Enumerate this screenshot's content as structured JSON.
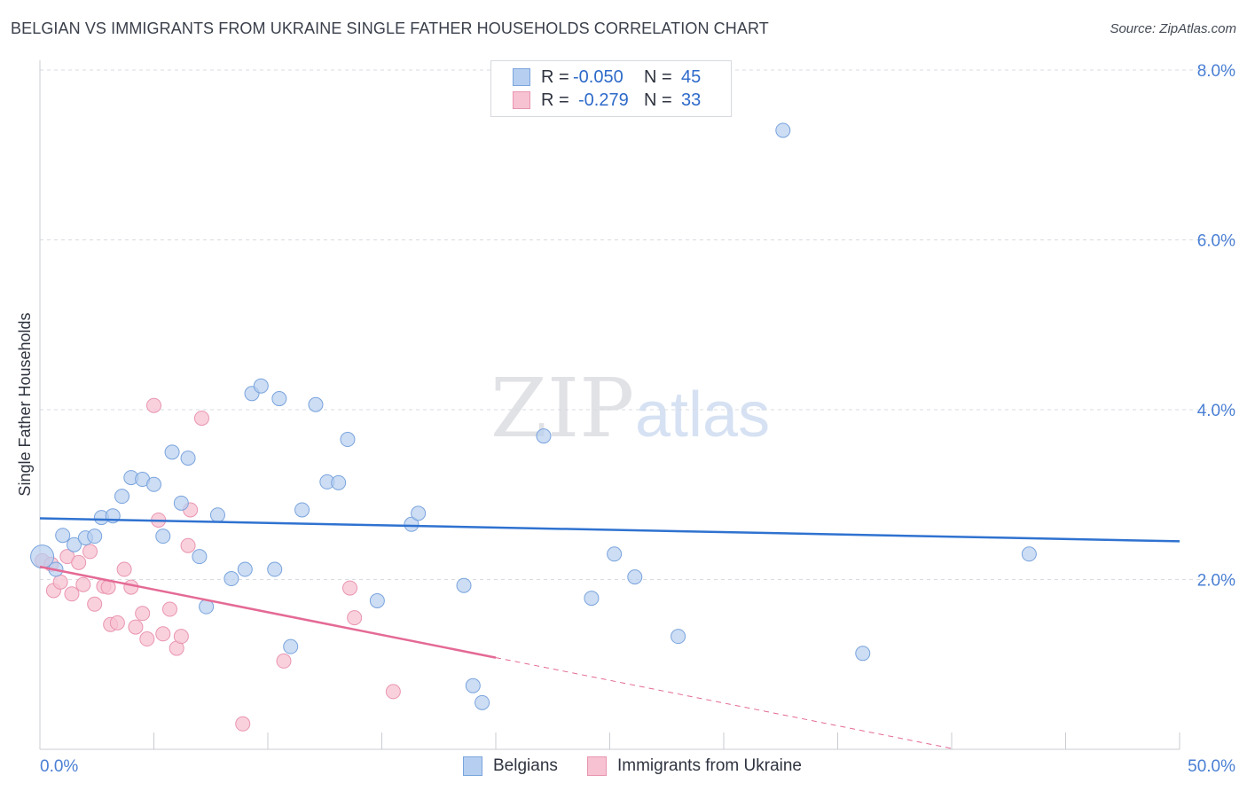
{
  "title": "BELGIAN VS IMMIGRANTS FROM UKRAINE SINGLE FATHER HOUSEHOLDS CORRELATION CHART",
  "source": "Source: ZipAtlas.com",
  "watermark": {
    "zip": "ZIP",
    "atlas": "atlas"
  },
  "legend": {
    "r_label": "R =",
    "n_label": "N =",
    "belgians": {
      "r": "-0.050",
      "n": "45"
    },
    "ukraine": {
      "r": "-0.279",
      "n": "33"
    }
  },
  "colors": {
    "belgians_fill": "#b6cff0",
    "belgians_stroke": "#7aa4dd",
    "belgians_line": "#2f72d0",
    "ukraine_fill": "#f7c2d2",
    "ukraine_stroke": "#e995b0",
    "ukraine_line": "#e46a95",
    "axis_text": "#4a7fd4",
    "grid": "#d8dbe0"
  },
  "chart_data": {
    "type": "scatter",
    "title": "BELGIAN VS IMMIGRANTS FROM UKRAINE SINGLE FATHER HOUSEHOLDS CORRELATION CHART",
    "xlabel": "",
    "ylabel": "Single Father Households",
    "xlim": [
      0,
      50
    ],
    "ylim": [
      0,
      8
    ],
    "x_tick_labels": [
      "0.0%",
      "50.0%"
    ],
    "y_ticks": [
      2,
      4,
      6,
      8
    ],
    "y_tick_labels": [
      "2.0%",
      "4.0%",
      "6.0%",
      "8.0%"
    ],
    "grid": true,
    "legend_position": "top-center",
    "series": [
      {
        "name": "Belgians",
        "points": [
          [
            0.1,
            2.27
          ],
          [
            0.7,
            2.12
          ],
          [
            1.0,
            2.52
          ],
          [
            1.5,
            2.41
          ],
          [
            2.0,
            2.49
          ],
          [
            2.4,
            2.51
          ],
          [
            2.7,
            2.73
          ],
          [
            3.2,
            2.75
          ],
          [
            3.6,
            2.98
          ],
          [
            4.0,
            3.2
          ],
          [
            4.5,
            3.18
          ],
          [
            5.0,
            3.12
          ],
          [
            5.4,
            2.51
          ],
          [
            5.8,
            3.5
          ],
          [
            6.2,
            2.9
          ],
          [
            6.5,
            3.43
          ],
          [
            7.0,
            2.27
          ],
          [
            7.3,
            1.68
          ],
          [
            7.8,
            2.76
          ],
          [
            8.4,
            2.01
          ],
          [
            9.0,
            2.12
          ],
          [
            9.3,
            4.19
          ],
          [
            9.7,
            4.28
          ],
          [
            10.3,
            2.12
          ],
          [
            10.5,
            4.13
          ],
          [
            11.0,
            1.21
          ],
          [
            11.5,
            2.82
          ],
          [
            12.1,
            4.06
          ],
          [
            12.6,
            3.15
          ],
          [
            13.1,
            3.14
          ],
          [
            13.5,
            3.65
          ],
          [
            14.8,
            1.75
          ],
          [
            16.3,
            2.65
          ],
          [
            16.6,
            2.78
          ],
          [
            18.6,
            1.93
          ],
          [
            19.0,
            0.75
          ],
          [
            19.4,
            0.55
          ],
          [
            22.1,
            3.69
          ],
          [
            24.2,
            1.78
          ],
          [
            25.2,
            2.3
          ],
          [
            26.1,
            2.03
          ],
          [
            28.0,
            1.33
          ],
          [
            32.6,
            7.29
          ],
          [
            36.1,
            1.13
          ],
          [
            43.4,
            2.3
          ]
        ],
        "trend": {
          "x": [
            0,
            50
          ],
          "y": [
            2.72,
            2.45
          ]
        }
      },
      {
        "name": "Immigrants from Ukraine",
        "points": [
          [
            0.1,
            2.22
          ],
          [
            0.5,
            2.18
          ],
          [
            0.6,
            1.87
          ],
          [
            0.9,
            1.97
          ],
          [
            1.2,
            2.27
          ],
          [
            1.4,
            1.83
          ],
          [
            1.7,
            2.2
          ],
          [
            1.9,
            1.94
          ],
          [
            2.2,
            2.33
          ],
          [
            2.4,
            1.71
          ],
          [
            2.8,
            1.92
          ],
          [
            3.0,
            1.91
          ],
          [
            3.1,
            1.47
          ],
          [
            3.4,
            1.49
          ],
          [
            3.7,
            2.12
          ],
          [
            4.0,
            1.91
          ],
          [
            4.2,
            1.44
          ],
          [
            4.5,
            1.6
          ],
          [
            4.7,
            1.3
          ],
          [
            5.0,
            4.05
          ],
          [
            5.2,
            2.7
          ],
          [
            5.4,
            1.36
          ],
          [
            5.7,
            1.65
          ],
          [
            6.0,
            1.19
          ],
          [
            6.2,
            1.33
          ],
          [
            6.5,
            2.4
          ],
          [
            6.6,
            2.82
          ],
          [
            7.1,
            3.9
          ],
          [
            8.9,
            0.3
          ],
          [
            10.7,
            1.04
          ],
          [
            13.6,
            1.9
          ],
          [
            13.8,
            1.55
          ],
          [
            15.5,
            0.68
          ]
        ],
        "trend": {
          "x": [
            0,
            20
          ],
          "y": [
            2.15,
            1.08
          ]
        },
        "trend_extension": {
          "x": [
            20,
            40
          ],
          "y": [
            1.08,
            0.01
          ]
        }
      }
    ]
  },
  "bottom_legend": {
    "belgians": "Belgians",
    "ukraine": "Immigrants from Ukraine"
  }
}
